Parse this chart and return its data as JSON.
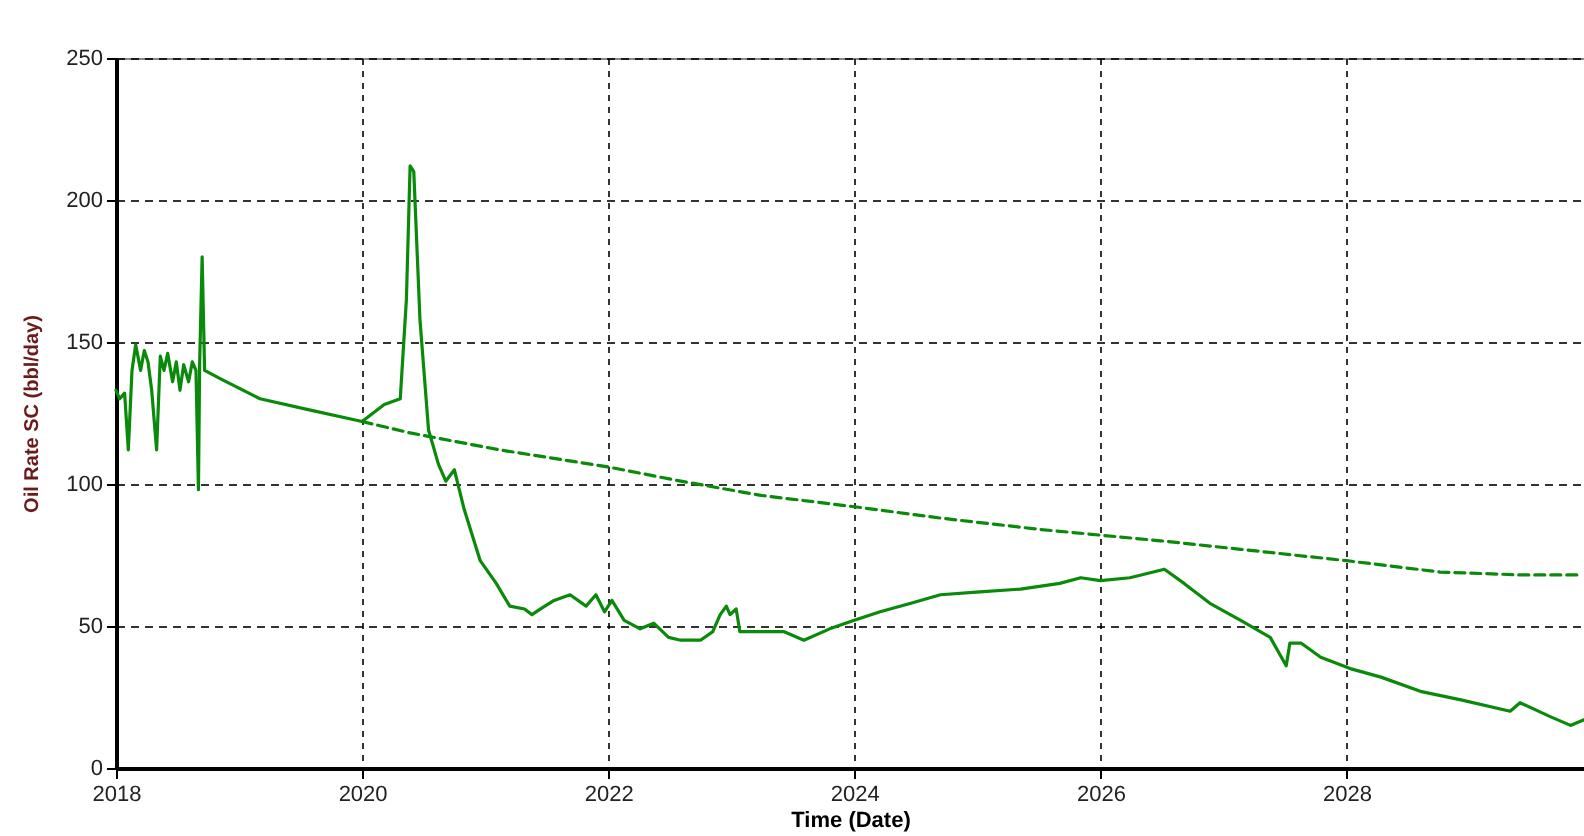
{
  "chart_data": {
    "type": "line",
    "xlabel": "Time (Date)",
    "ylabel": "Oil Rate SC (bbl/day)",
    "xlim": [
      2018,
      2029.93
    ],
    "xticks": [
      2018,
      2020,
      2022,
      2024,
      2026,
      2028
    ],
    "ylim": [
      0,
      250
    ],
    "yticks": [
      0,
      50,
      100,
      150,
      200,
      250
    ],
    "grid": true,
    "marker": "none",
    "series": [
      {
        "color": "#0a8a0a",
        "line_style": "solid",
        "x": [
          2018.0,
          2018.03,
          2018.07,
          2018.1,
          2018.13,
          2018.16,
          2018.2,
          2018.23,
          2018.26,
          2018.29,
          2018.33,
          2018.36,
          2018.39,
          2018.42,
          2018.46,
          2018.49,
          2018.52,
          2018.55,
          2018.59,
          2018.62,
          2018.65,
          2018.67,
          2018.68,
          2018.7,
          2018.72,
          2018.85,
          2019.17,
          2019.58,
          2020.0,
          2020.18,
          2020.31,
          2020.36,
          2020.39,
          2020.42,
          2020.47,
          2020.54,
          2020.62,
          2020.68,
          2020.75,
          2020.83,
          2020.96,
          2021.09,
          2021.2,
          2021.32,
          2021.38,
          2021.45,
          2021.56,
          2021.69,
          2021.82,
          2021.9,
          2021.97,
          2022.03,
          2022.13,
          2022.26,
          2022.37,
          2022.49,
          2022.59,
          2022.75,
          2022.85,
          2022.91,
          2022.96,
          2022.99,
          2023.04,
          2023.07,
          2023.24,
          2023.43,
          2023.59,
          2023.8,
          2024.0,
          2024.21,
          2024.46,
          2024.7,
          2025.02,
          2025.35,
          2025.67,
          2025.84,
          2026.0,
          2026.24,
          2026.52,
          2026.68,
          2026.89,
          2027.14,
          2027.38,
          2027.51,
          2027.54,
          2027.63,
          2027.79,
          2028.03,
          2028.28,
          2028.6,
          2028.93,
          2029.33,
          2029.41,
          2029.66,
          2029.82,
          2029.93
        ],
        "values": [
          133,
          130,
          132,
          112,
          140,
          149,
          140,
          147,
          143,
          133,
          112,
          145,
          140,
          146,
          136,
          143,
          133,
          142,
          136,
          143,
          140,
          98,
          143,
          180,
          140,
          137,
          130,
          126,
          122,
          128,
          130,
          165,
          212,
          210,
          158,
          119,
          107,
          101,
          105,
          91,
          73,
          65,
          57,
          56,
          54,
          56,
          59,
          61,
          57,
          61,
          55,
          59,
          52,
          49,
          51,
          46,
          45,
          45,
          48,
          54,
          57,
          54,
          56,
          48,
          48,
          48,
          45,
          49,
          52,
          55,
          58,
          61,
          62,
          63,
          65,
          67,
          66,
          67,
          70,
          65,
          58,
          52,
          46,
          36,
          44,
          44,
          39,
          35,
          32,
          27,
          24,
          20,
          23,
          18,
          15,
          17
        ]
      },
      {
        "color": "#0a8a0a",
        "line_style": "dashed",
        "x": [
          2020.0,
          2020.39,
          2021.12,
          2022.0,
          2022.59,
          2023.24,
          2024.0,
          2024.7,
          2025.51,
          2026.0,
          2026.49,
          2027.14,
          2028.0,
          2028.76,
          2029.41,
          2029.9
        ],
        "values": [
          122,
          118,
          112,
          106,
          101,
          96,
          92,
          88,
          84,
          82,
          80,
          77,
          73,
          69,
          68,
          68
        ]
      }
    ]
  }
}
